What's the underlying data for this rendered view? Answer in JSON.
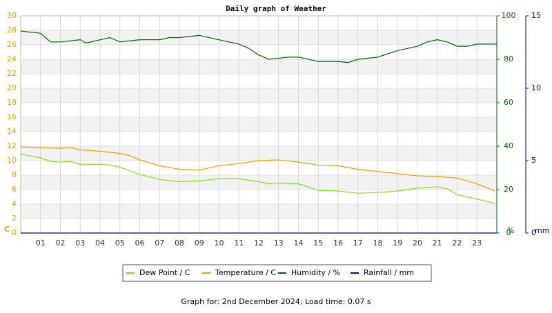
{
  "chart_data": {
    "type": "line",
    "title": "Daily graph of Weather",
    "footer": "Graph for: 2nd December 2024; Load time: 0.07 s",
    "ylabel": "C",
    "y2label": "%",
    "y3label": "mm",
    "xlim": [
      0,
      24
    ],
    "xticks": [
      {
        "value": 1,
        "label": "01"
      },
      {
        "value": 2,
        "label": "02"
      },
      {
        "value": 3,
        "label": "03"
      },
      {
        "value": 4,
        "label": "04"
      },
      {
        "value": 5,
        "label": "05"
      },
      {
        "value": 6,
        "label": "06"
      },
      {
        "value": 7,
        "label": "07"
      },
      {
        "value": 8,
        "label": "08"
      },
      {
        "value": 9,
        "label": "09"
      },
      {
        "value": 10,
        "label": "10"
      },
      {
        "value": 11,
        "label": "11"
      },
      {
        "value": 12,
        "label": "12"
      },
      {
        "value": 13,
        "label": "13"
      },
      {
        "value": 14,
        "label": "14"
      },
      {
        "value": 15,
        "label": "15"
      },
      {
        "value": 16,
        "label": "16"
      },
      {
        "value": 17,
        "label": "17"
      },
      {
        "value": 18,
        "label": "18"
      },
      {
        "value": 19,
        "label": "19"
      },
      {
        "value": 20,
        "label": "20"
      },
      {
        "value": 21,
        "label": "21"
      },
      {
        "value": 22,
        "label": "22"
      },
      {
        "value": 23,
        "label": "23"
      }
    ],
    "ylim": [
      0,
      30
    ],
    "yticks": [
      0,
      2,
      4,
      6,
      8,
      10,
      12,
      14,
      16,
      18,
      20,
      22,
      24,
      26,
      28,
      30
    ],
    "y2lim": [
      0,
      100
    ],
    "y2ticks": [
      0,
      20,
      40,
      60,
      80,
      100
    ],
    "y3lim": [
      0,
      15
    ],
    "y3ticks": [
      0,
      5,
      10,
      15
    ],
    "grid": true,
    "series": [
      {
        "name": "Dew Point / C",
        "color": "#80e020",
        "axis": "y",
        "x": [
          0,
          1,
          1.5,
          2,
          2.5,
          3,
          4,
          4.5,
          5,
          6,
          7,
          8,
          9,
          10,
          11,
          12,
          12.5,
          13,
          14,
          15,
          16,
          17,
          18,
          19,
          20,
          21,
          21.5,
          22,
          23,
          23.9
        ],
        "values": [
          10.9,
          10.4,
          9.9,
          9.8,
          9.9,
          9.5,
          9.5,
          9.4,
          9.1,
          8.1,
          7.4,
          7.1,
          7.2,
          7.5,
          7.5,
          7.1,
          6.8,
          6.9,
          6.8,
          5.9,
          5.8,
          5.5,
          5.6,
          5.8,
          6.2,
          6.4,
          6.1,
          5.3,
          4.7,
          4.1
        ]
      },
      {
        "name": "Temperature / C",
        "color": "#e8a000",
        "axis": "y",
        "x": [
          0,
          1,
          2,
          2.5,
          3,
          4,
          5,
          5.5,
          6,
          7,
          8,
          9,
          10,
          11,
          12,
          13,
          14,
          15,
          16,
          17,
          18,
          19,
          20,
          21,
          22,
          23,
          23.9
        ],
        "values": [
          11.9,
          11.8,
          11.7,
          11.8,
          11.5,
          11.3,
          11.0,
          10.7,
          10.1,
          9.3,
          8.8,
          8.7,
          9.3,
          9.6,
          10.0,
          10.1,
          9.8,
          9.4,
          9.3,
          8.8,
          8.5,
          8.2,
          7.9,
          7.8,
          7.6,
          6.8,
          5.8
        ]
      },
      {
        "name": "Humidity / %",
        "color": "#006600",
        "axis": "y2",
        "x": [
          0,
          1,
          1.5,
          2,
          3,
          3.3,
          4,
          4.5,
          5,
          6,
          7,
          7.5,
          8,
          9,
          10,
          11,
          11.5,
          12,
          12.5,
          13,
          13.5,
          14,
          15,
          16,
          16.5,
          17,
          18,
          19,
          20,
          20.5,
          21,
          21.5,
          22,
          22.5,
          23,
          24
        ],
        "values": [
          93,
          92,
          88,
          88,
          89,
          87.5,
          89,
          90,
          88,
          89,
          89,
          90,
          90,
          91,
          89,
          87,
          85,
          82,
          80,
          80.5,
          81,
          81,
          79,
          79,
          78.5,
          80,
          81,
          84,
          86,
          88,
          89,
          88,
          86,
          86,
          87,
          87
        ]
      },
      {
        "name": "Rainfall / mm",
        "color": "#000099",
        "axis": "y3",
        "x": [
          0,
          24
        ],
        "values": [
          0,
          0
        ]
      }
    ]
  }
}
